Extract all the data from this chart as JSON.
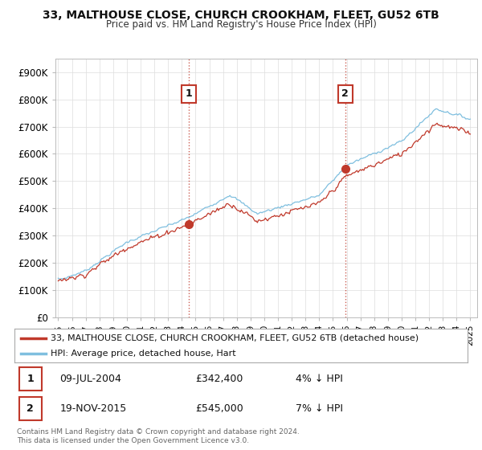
{
  "title1": "33, MALTHOUSE CLOSE, CHURCH CROOKHAM, FLEET, GU52 6TB",
  "title2": "Price paid vs. HM Land Registry's House Price Index (HPI)",
  "ylabel_ticks": [
    "£0",
    "£100K",
    "£200K",
    "£300K",
    "£400K",
    "£500K",
    "£600K",
    "£700K",
    "£800K",
    "£900K"
  ],
  "ytick_values": [
    0,
    100000,
    200000,
    300000,
    400000,
    500000,
    600000,
    700000,
    800000,
    900000
  ],
  "ylim": [
    0,
    950000
  ],
  "xlim_start": 1994.8,
  "xlim_end": 2025.5,
  "sale1_x": 2004.52,
  "sale1_y": 342400,
  "sale1_label": "1",
  "sale1_date": "09-JUL-2004",
  "sale1_price": "£342,400",
  "sale1_hpi": "4% ↓ HPI",
  "sale2_x": 2015.9,
  "sale2_y": 545000,
  "sale2_label": "2",
  "sale2_date": "19-NOV-2015",
  "sale2_price": "£545,000",
  "sale2_hpi": "7% ↓ HPI",
  "hpi_color": "#7fbfdf",
  "price_color": "#c0392b",
  "vline_color": "#c0392b",
  "grid_color": "#dddddd",
  "background_color": "#ffffff",
  "legend_label_price": "33, MALTHOUSE CLOSE, CHURCH CROOKHAM, FLEET, GU52 6TB (detached house)",
  "legend_label_hpi": "HPI: Average price, detached house, Hart",
  "footnote": "Contains HM Land Registry data © Crown copyright and database right 2024.\nThis data is licensed under the Open Government Licence v3.0.",
  "xtick_years": [
    1995,
    1996,
    1997,
    1998,
    1999,
    2000,
    2001,
    2002,
    2003,
    2004,
    2005,
    2006,
    2007,
    2008,
    2009,
    2010,
    2011,
    2012,
    2013,
    2014,
    2015,
    2016,
    2017,
    2018,
    2019,
    2020,
    2021,
    2022,
    2023,
    2024,
    2025
  ]
}
